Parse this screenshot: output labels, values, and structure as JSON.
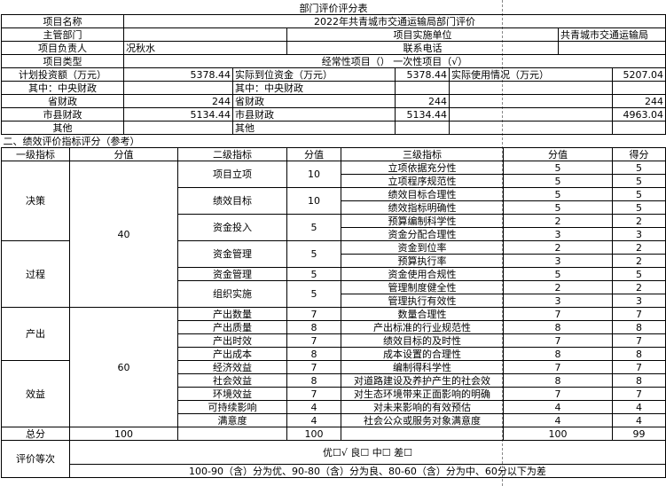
{
  "title": "部门评价评分表",
  "info": {
    "project_name_label": "项目名称",
    "project_name": "2022年共青城市交通运输局部门评价",
    "dept_label": "主管部门",
    "dept": "",
    "impl_unit_label": "项目实施单位",
    "impl_unit": "共青城市交通运输局",
    "leader_label": "项目负责人",
    "leader": "况秋水",
    "phone_label": "联系电话",
    "phone": "",
    "type_label": "项目类型",
    "type": "经常性项目（）  一次性项目（√）"
  },
  "funds": {
    "plan_label": "计划投资额（万元）",
    "actual_label": "实际到位资金（万元）",
    "used_label": "实际使用情况（万元）",
    "rows": [
      {
        "label": "计划投资额（万元）",
        "plan": "5378.44",
        "actual_label": "实际到位资金（万元）",
        "actual": "5378.44",
        "used_label": "实际使用情况（万元）",
        "used": "5207.04"
      },
      {
        "label": "其中：中央财政",
        "plan": "",
        "actual_label": "其中：中央财政",
        "actual": "",
        "used_label": "",
        "used": ""
      },
      {
        "label": "省财政",
        "plan": "244",
        "actual_label": "省财政",
        "actual": "244",
        "used_label": "",
        "used": "244"
      },
      {
        "label": "市县财政",
        "plan": "5134.44",
        "actual_label": "市县财政",
        "actual": "5134.44",
        "used_label": "",
        "used": "4963.04"
      },
      {
        "label": "其他",
        "plan": "",
        "actual_label": "其他",
        "actual": "",
        "used_label": "",
        "used": ""
      }
    ]
  },
  "section2_title": "二、绩效评价指标评分（参考）",
  "headers": {
    "l1": "一级指标",
    "s1": "分值",
    "l2": "二级指标",
    "s2": "分值",
    "l3": "三级指标",
    "s3": "分值",
    "score": "得分"
  },
  "l1": {
    "decision": "决策",
    "process": "过程",
    "output": "产出",
    "benefit": "效益",
    "score_40": "40",
    "score_60": "60"
  },
  "l2": [
    "项目立项",
    "绩效目标",
    "资金投入",
    "资金管理",
    "资金管理",
    "组织实施",
    "产出数量",
    "产出质量",
    "产出时效",
    "产出成本",
    "经济效益",
    "社会效益",
    "环境效益",
    "可持续影响",
    "满意度"
  ],
  "l2_scores": [
    "10",
    "10",
    "5",
    "5",
    "5",
    "5",
    "7",
    "8",
    "7",
    "8",
    "7",
    "8",
    "7",
    "4",
    "4"
  ],
  "rows": [
    {
      "l3": "立项依据充分性",
      "s": "5",
      "g": "5"
    },
    {
      "l3": "立项程序规范性",
      "s": "5",
      "g": "5"
    },
    {
      "l3": "绩效目标合理性",
      "s": "5",
      "g": "5"
    },
    {
      "l3": "绩效指标明确性",
      "s": "5",
      "g": "5"
    },
    {
      "l3": "预算编制科学性",
      "s": "2",
      "g": "2"
    },
    {
      "l3": "资金分配合理性",
      "s": "3",
      "g": "3"
    },
    {
      "l3": "资金到位率",
      "s": "2",
      "g": "2"
    },
    {
      "l3": "预算执行率",
      "s": "3",
      "g": "2"
    },
    {
      "l3": "资金使用合规性",
      "s": "5",
      "g": "5"
    },
    {
      "l3": "管理制度健全性",
      "s": "2",
      "g": "2"
    },
    {
      "l3": "管理执行有效性",
      "s": "3",
      "g": "3"
    },
    {
      "l3": "数量合理性",
      "s": "7",
      "g": "7"
    },
    {
      "l3": "产出标准的行业规范性",
      "s": "8",
      "g": "8"
    },
    {
      "l3": "绩效目标的及时性",
      "s": "7",
      "g": "7"
    },
    {
      "l3": "成本设置的合理性",
      "s": "8",
      "g": "8"
    },
    {
      "l3": "编制得科学性",
      "s": "7",
      "g": "7"
    },
    {
      "l3": "对道路建设及养护产生的社会效",
      "s": "8",
      "g": "8"
    },
    {
      "l3": "对生态环境带来正面影响的明确",
      "s": "7",
      "g": "7"
    },
    {
      "l3": "对未来影响的有效预估",
      "s": "4",
      "g": "4"
    },
    {
      "l3": "社会公众或服务对象满意度",
      "s": "4",
      "g": "4"
    }
  ],
  "total": {
    "label": "总分",
    "s1": "100",
    "s2": "100",
    "s3": "100",
    "score": "99"
  },
  "grade": {
    "label": "评价等次",
    "options": "优☐√ 良☐ 中☐ 差☐",
    "rule": "100-90（含）分为优、90-80（含）分为良、80-60（含）分为中、60分以下为差"
  }
}
